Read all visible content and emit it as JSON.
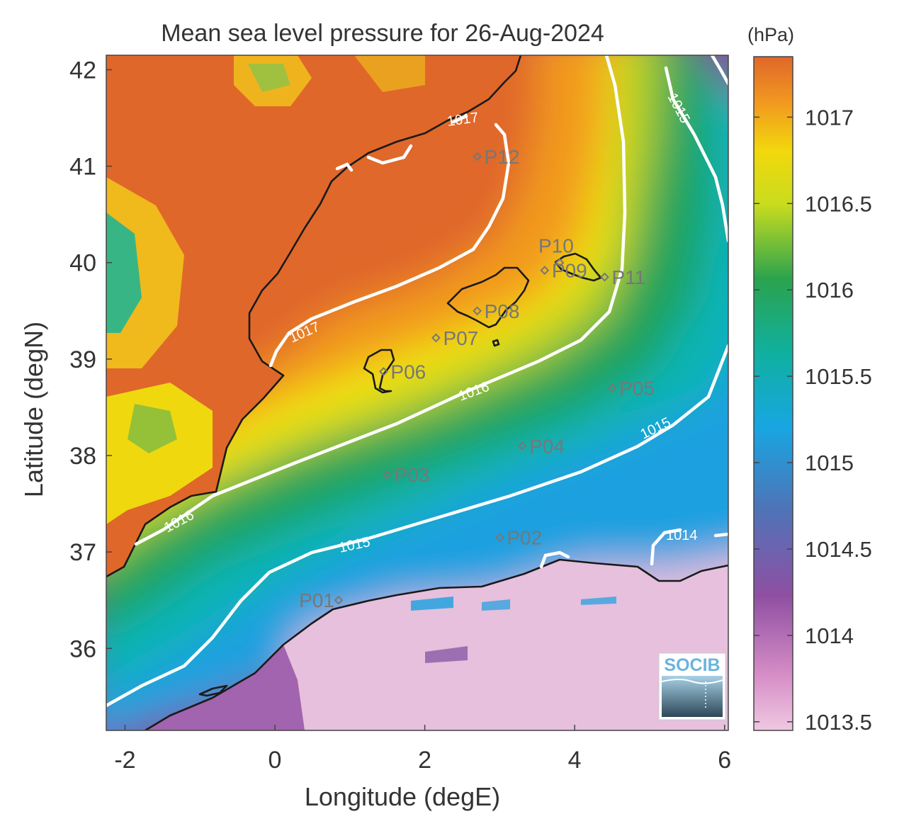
{
  "title": "Mean sea level pressure for 26-Aug-2024",
  "colorbar_unit": "(hPa)",
  "xlabel": "Longitude (degE)",
  "ylabel": "Latitude (degN)",
  "x_ticks": [
    "-2",
    "0",
    "2",
    "4",
    "6"
  ],
  "y_ticks": [
    "42",
    "41",
    "40",
    "39",
    "38",
    "37",
    "36"
  ],
  "colorbar_ticks": [
    "1017",
    "1016.5",
    "1016",
    "1015.5",
    "1015",
    "1014.5",
    "1014",
    "1013.5"
  ],
  "contour_labels": [
    "1017",
    "1017",
    "1016",
    "1016",
    "1015",
    "1015",
    "1015",
    "1014"
  ],
  "markers": [
    {
      "label": "P01",
      "lon": 0.85,
      "lat": 36.5
    },
    {
      "label": "P02",
      "lon": 3.0,
      "lat": 37.15
    },
    {
      "label": "P03",
      "lon": 1.5,
      "lat": 37.8
    },
    {
      "label": "P04",
      "lon": 3.3,
      "lat": 38.1
    },
    {
      "label": "P05",
      "lon": 4.5,
      "lat": 38.7
    },
    {
      "label": "P06",
      "lon": 1.45,
      "lat": 38.87
    },
    {
      "label": "P07",
      "lon": 2.15,
      "lat": 39.22
    },
    {
      "label": "P08",
      "lon": 2.7,
      "lat": 39.5
    },
    {
      "label": "P09",
      "lon": 3.6,
      "lat": 39.92
    },
    {
      "label": "P10",
      "lon": 3.8,
      "lat": 40.0
    },
    {
      "label": "P11",
      "lon": 4.4,
      "lat": 39.85
    },
    {
      "label": "P12",
      "lon": 2.7,
      "lat": 41.1
    }
  ],
  "logo_text": "SOCIB",
  "colors": {
    "high": "#e0672a",
    "orange": "#f29a1f",
    "yellow": "#f2e40c",
    "green": "#1fa35a",
    "teal": "#0ab4b4",
    "blue": "#1aa0e0",
    "purple": "#7a4fa0",
    "magenta": "#b24aa8",
    "low": "#e6c0dc",
    "coast": "#1a1a1a",
    "contour": "#ffffff"
  }
}
